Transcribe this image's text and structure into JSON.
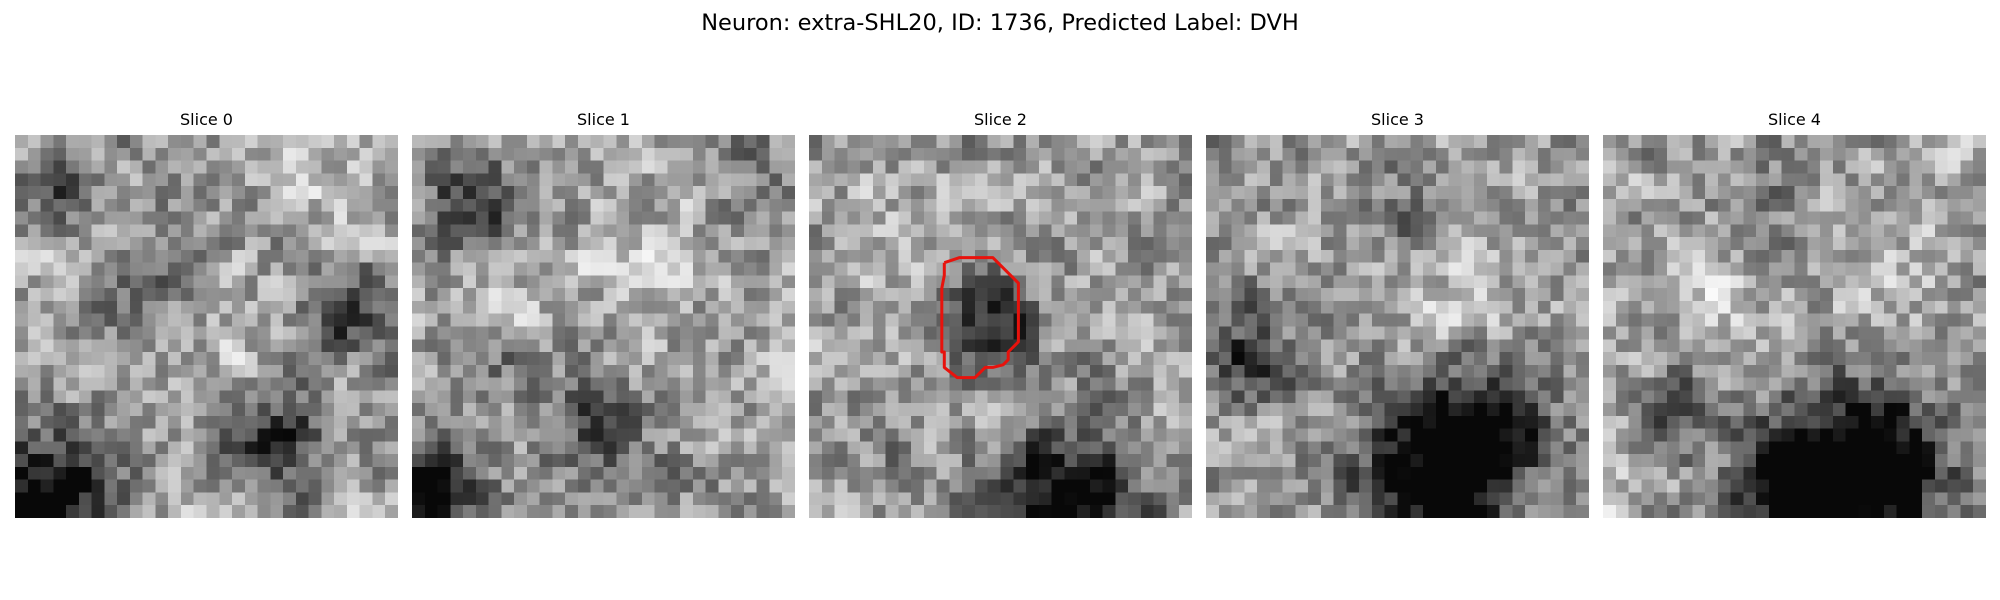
{
  "figure": {
    "title": "Neuron: extra-SHL20, ID: 1736, Predicted Label: DVH"
  },
  "panels": [
    {
      "title": "Slice 0"
    },
    {
      "title": "Slice 1"
    },
    {
      "title": "Slice 2"
    },
    {
      "title": "Slice 3"
    },
    {
      "title": "Slice 4"
    }
  ],
  "colors": {
    "background": "#ffffff",
    "contour": "#e8120c",
    "colormap": "gray"
  }
}
